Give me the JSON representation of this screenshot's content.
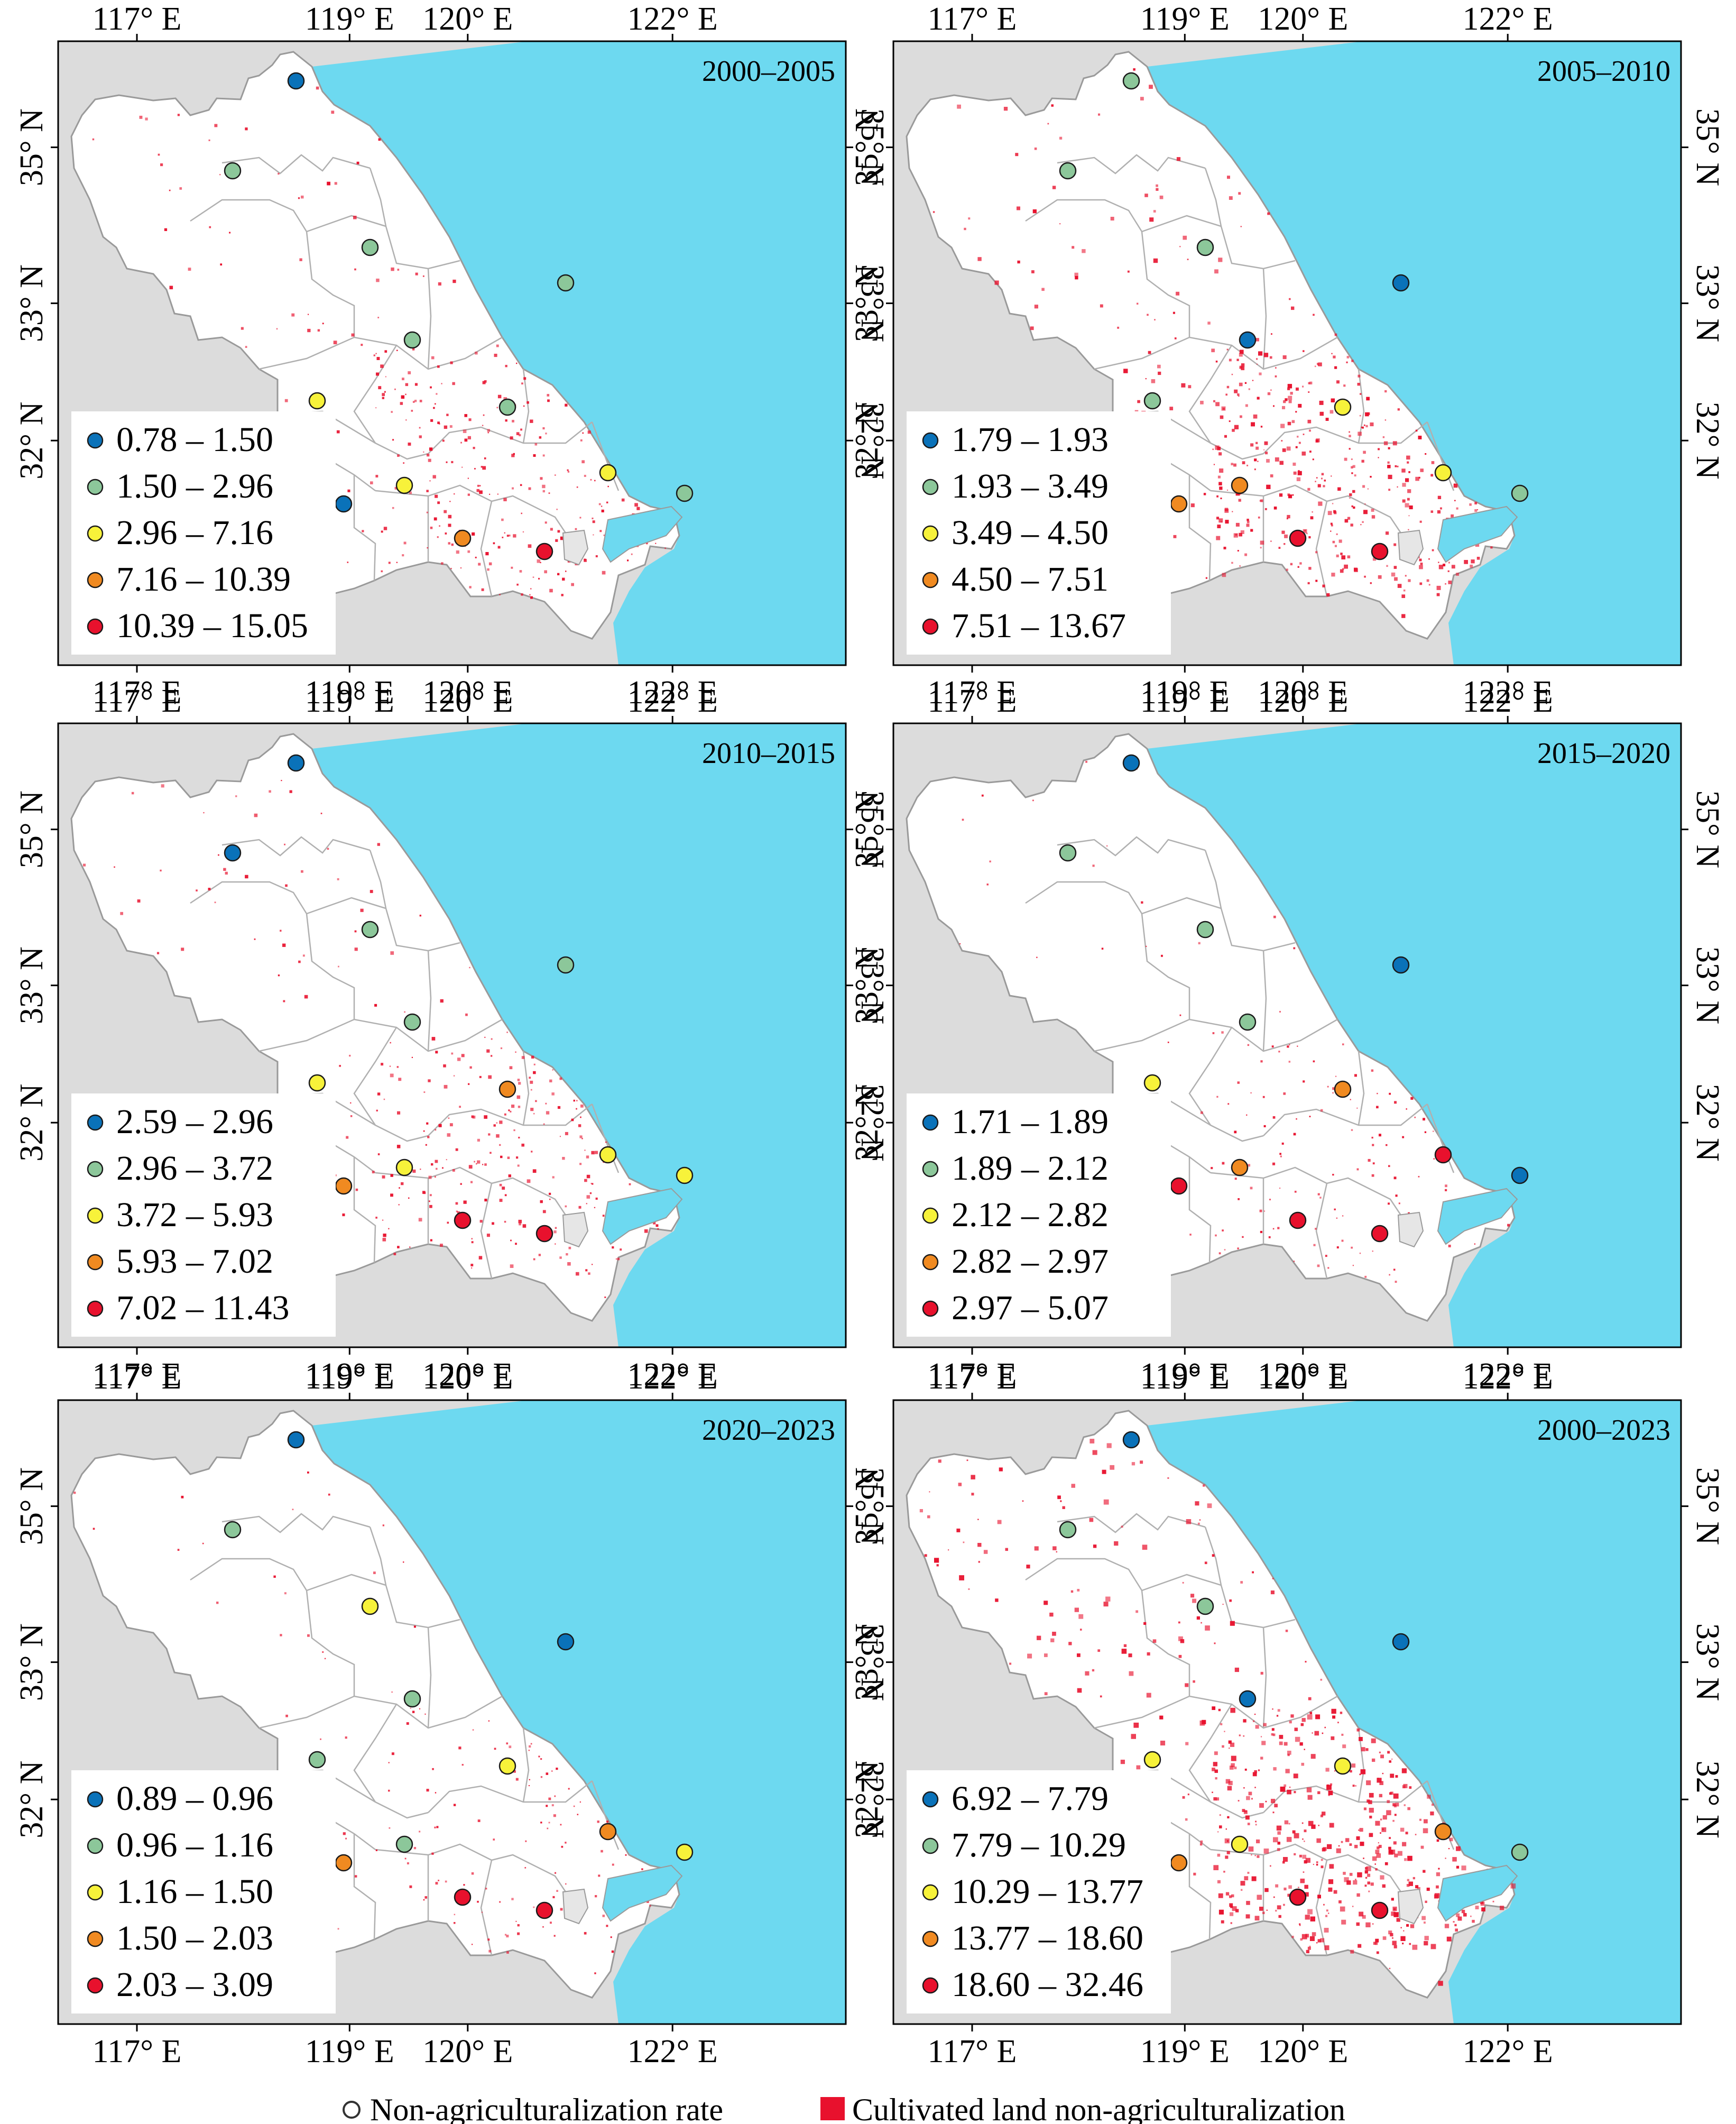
{
  "colors": {
    "sea": "#6dd9f0",
    "outside": "#dcdcdc",
    "land": "#ffffff",
    "border": "#9a9a9a",
    "frame": "#000000",
    "speckle": "#e8112d",
    "class": [
      "#0a72b9",
      "#8cc79a",
      "#f7f23a",
      "#f08a21",
      "#e8112d"
    ]
  },
  "axes": {
    "lon_ticks": [
      "117° E",
      "119° E",
      "120° E",
      "122° E"
    ],
    "lat_ticks": [
      "35° N",
      "33° N",
      "32° N"
    ]
  },
  "panels": [
    {
      "title": "2000–2005",
      "speckle": 2,
      "legend": [
        [
          "0.78",
          "1.50"
        ],
        [
          "1.50",
          "2.96"
        ],
        [
          "2.96",
          "7.16"
        ],
        [
          "7.16",
          "10.39"
        ],
        [
          "10.39",
          "15.05"
        ]
      ],
      "classes": [
        0,
        1,
        1,
        1,
        1,
        2,
        1,
        2,
        2,
        0,
        3,
        4,
        1
      ]
    },
    {
      "title": "2005–2010",
      "speckle": 3,
      "legend": [
        [
          "1.79",
          "1.93"
        ],
        [
          "1.93",
          "3.49"
        ],
        [
          "3.49",
          "4.50"
        ],
        [
          "4.50",
          "7.51"
        ],
        [
          "7.51",
          "13.67"
        ]
      ],
      "classes": [
        1,
        1,
        1,
        0,
        0,
        1,
        2,
        2,
        3,
        3,
        4,
        4,
        1
      ]
    },
    {
      "title": "2010–2015",
      "speckle": 2,
      "legend": [
        [
          "2.59",
          "2.96"
        ],
        [
          "2.96",
          "3.72"
        ],
        [
          "3.72",
          "5.93"
        ],
        [
          "5.93",
          "7.02"
        ],
        [
          "7.02",
          "11.43"
        ]
      ],
      "classes": [
        0,
        0,
        1,
        1,
        1,
        2,
        3,
        2,
        2,
        3,
        4,
        4,
        2
      ]
    },
    {
      "title": "2015–2020",
      "speckle": 1,
      "legend": [
        [
          "1.71",
          "1.89"
        ],
        [
          "1.89",
          "2.12"
        ],
        [
          "2.12",
          "2.82"
        ],
        [
          "2.82",
          "2.97"
        ],
        [
          "2.97",
          "5.07"
        ]
      ],
      "classes": [
        0,
        1,
        1,
        1,
        0,
        2,
        3,
        4,
        3,
        4,
        4,
        4,
        0
      ]
    },
    {
      "title": "2020–2023",
      "speckle": 1,
      "legend": [
        [
          "0.89",
          "0.96"
        ],
        [
          "0.96",
          "1.16"
        ],
        [
          "1.16",
          "1.50"
        ],
        [
          "1.50",
          "2.03"
        ],
        [
          "2.03",
          "3.09"
        ]
      ],
      "classes": [
        0,
        1,
        2,
        1,
        0,
        1,
        2,
        3,
        1,
        3,
        4,
        4,
        2
      ]
    },
    {
      "title": "2000–2023",
      "speckle": 4,
      "legend": [
        [
          "6.92",
          "7.79"
        ],
        [
          "7.79",
          "10.29"
        ],
        [
          "10.29",
          "13.77"
        ],
        [
          "13.77",
          "18.60"
        ],
        [
          "18.60",
          "32.46"
        ]
      ],
      "classes": [
        0,
        1,
        1,
        0,
        0,
        2,
        2,
        3,
        2,
        3,
        4,
        4,
        1
      ]
    }
  ],
  "footer": {
    "rate_label": "Non-agriculturalization rate",
    "land_label": "Cultivated land non-agriculturalization"
  }
}
